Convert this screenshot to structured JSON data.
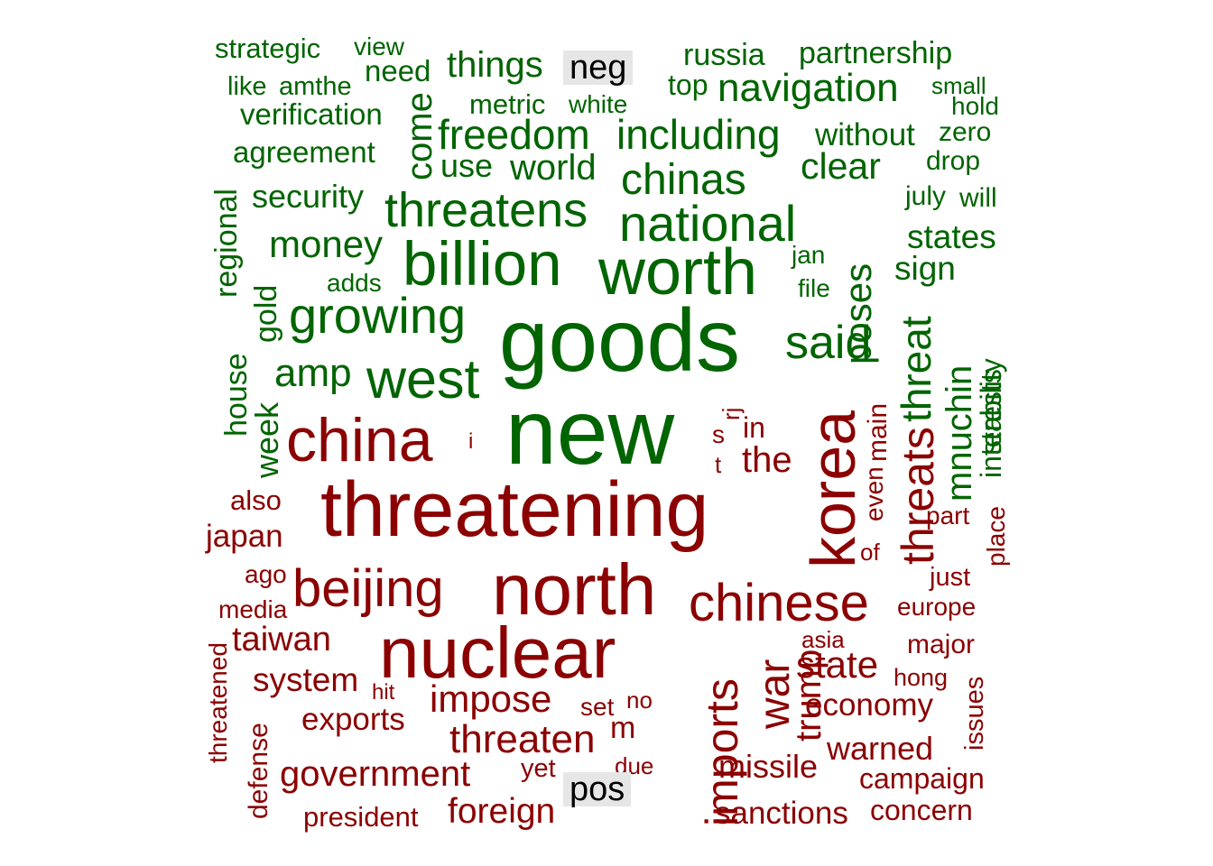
{
  "labels": {
    "neg": "neg",
    "pos": "pos"
  },
  "colors": {
    "neg": "#8B0000",
    "pos": "#006400"
  },
  "pos_words": [
    "strategic",
    "view",
    "things",
    "russia",
    "partnership",
    "like",
    "amthe",
    "need",
    "top",
    "navigation",
    "small",
    "metric",
    "white",
    "hold",
    "verification",
    "freedom",
    "including",
    "without",
    "zero",
    "agreement",
    "come",
    "use",
    "world",
    "clear",
    "drop",
    "chinas",
    "security",
    "threatens",
    "national",
    "july",
    "will",
    "regional",
    "states",
    "billion",
    "worth",
    "money",
    "jan",
    "sign",
    "adds",
    "file",
    "poses",
    "stability",
    "gold",
    "growing",
    "said",
    "goods",
    "threat",
    "house",
    "amp",
    "west",
    "interests",
    "mnuchin",
    "week",
    "new"
  ],
  "neg_words": [
    "i",
    "rj",
    "in",
    "main",
    "s",
    "t",
    "the",
    "china",
    "threats",
    "korea",
    "also",
    "even",
    "part",
    "threatening",
    "place",
    "japan",
    "of",
    "ago",
    "just",
    "north",
    "beijing",
    "media",
    "chinese",
    "europe",
    "threatened",
    "asia",
    "taiwan",
    "major",
    "nuclear",
    "war",
    "system",
    "state",
    "hong",
    "hit",
    "no",
    "impose",
    "issues",
    "trump",
    "imports",
    "economy",
    "exports",
    "set",
    "m",
    "defense",
    "threaten",
    "warned",
    "due",
    "yet",
    "missile",
    "government",
    "campaign",
    "president",
    "foreign",
    "sanctions",
    "concern"
  ]
}
